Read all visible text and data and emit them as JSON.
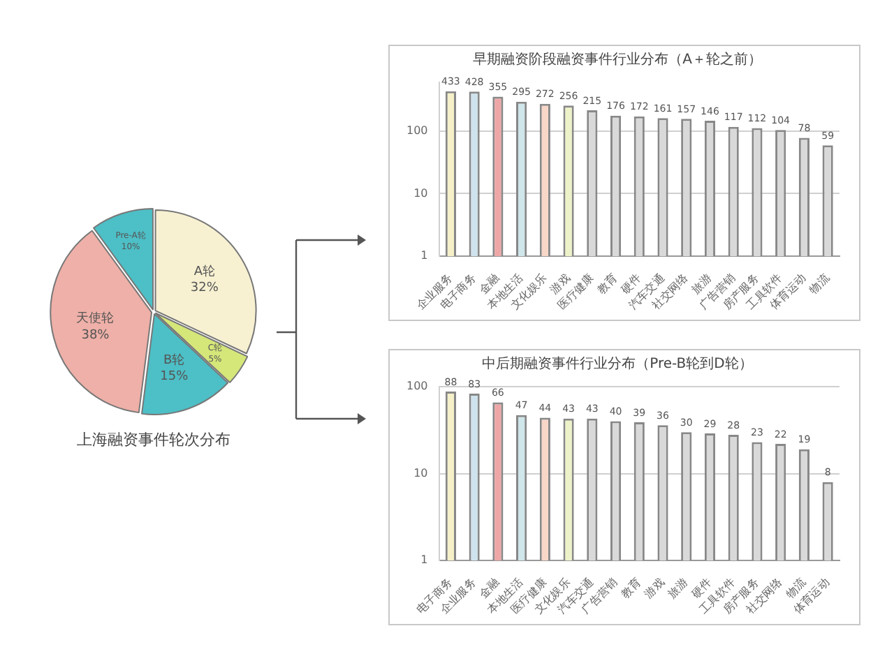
{
  "chart_data": [
    {
      "type": "pie",
      "title": "上海融资事件轮次分布",
      "categories": [
        "A轮",
        "C轮",
        "B轮",
        "天使轮",
        "Pre-A轮"
      ],
      "values": [
        32,
        5,
        15,
        38,
        10
      ],
      "value_labels": [
        "32%",
        "5%",
        "15%",
        "38%",
        "10%"
      ],
      "colors": [
        "#f7f1d2",
        "#d6e77a",
        "#4dbfc6",
        "#eeb0a8",
        "#4dbfc6"
      ],
      "legend": false
    },
    {
      "type": "bar",
      "title": "早期融资阶段融资事件行业分布（A＋轮之前）",
      "categories": [
        "企业服务",
        "电子商务",
        "金融",
        "本地生活",
        "文化娱乐",
        "游戏",
        "医疗健康",
        "教育",
        "硬件",
        "汽车交通",
        "社交网络",
        "旅游",
        "广告营销",
        "房产服务",
        "工具软件",
        "体育运动",
        "物流"
      ],
      "values": [
        433,
        428,
        355,
        295,
        272,
        256,
        215,
        176,
        172,
        161,
        157,
        146,
        117,
        112,
        104,
        78,
        59
      ],
      "colors": [
        "#f5f0c8",
        "#cfe3ee",
        "#eea6a6",
        "#cfe6ea",
        "#f8d6c8",
        "#eef2c8",
        "#d9d9d9",
        "#d9d9d9",
        "#d9d9d9",
        "#d9d9d9",
        "#d9d9d9",
        "#d9d9d9",
        "#d9d9d9",
        "#d9d9d9",
        "#d9d9d9",
        "#d9d9d9",
        "#d9d9d9"
      ],
      "log": "y",
      "ylim": [
        1,
        600
      ],
      "yticks": [
        1,
        10,
        100
      ],
      "grid": "y",
      "data_labels": true,
      "legend": false
    },
    {
      "type": "bar",
      "title": "中后期融资事件行业分布（Pre-B轮到D轮）",
      "categories": [
        "电子商务",
        "企业服务",
        "金融",
        "本地生活",
        "医疗健康",
        "文化娱乐",
        "汽车交通",
        "广告营销",
        "教育",
        "游戏",
        "旅游",
        "硬件",
        "工具软件",
        "房产服务",
        "社交网络",
        "物流",
        "体育运动"
      ],
      "values": [
        88,
        83,
        66,
        47,
        44,
        43,
        43,
        40,
        39,
        36,
        30,
        29,
        28,
        23,
        22,
        19,
        8
      ],
      "colors": [
        "#f5f0c8",
        "#cfe3ee",
        "#eea6a6",
        "#cfe6ea",
        "#f8d6c8",
        "#eef2c8",
        "#d9d9d9",
        "#d9d9d9",
        "#d9d9d9",
        "#d9d9d9",
        "#d9d9d9",
        "#d9d9d9",
        "#d9d9d9",
        "#d9d9d9",
        "#d9d9d9",
        "#d9d9d9",
        "#d9d9d9"
      ],
      "log": "y",
      "ylim": [
        1,
        100
      ],
      "yticks": [
        1,
        10,
        100
      ],
      "grid": "y",
      "data_labels": true,
      "legend": false
    }
  ]
}
